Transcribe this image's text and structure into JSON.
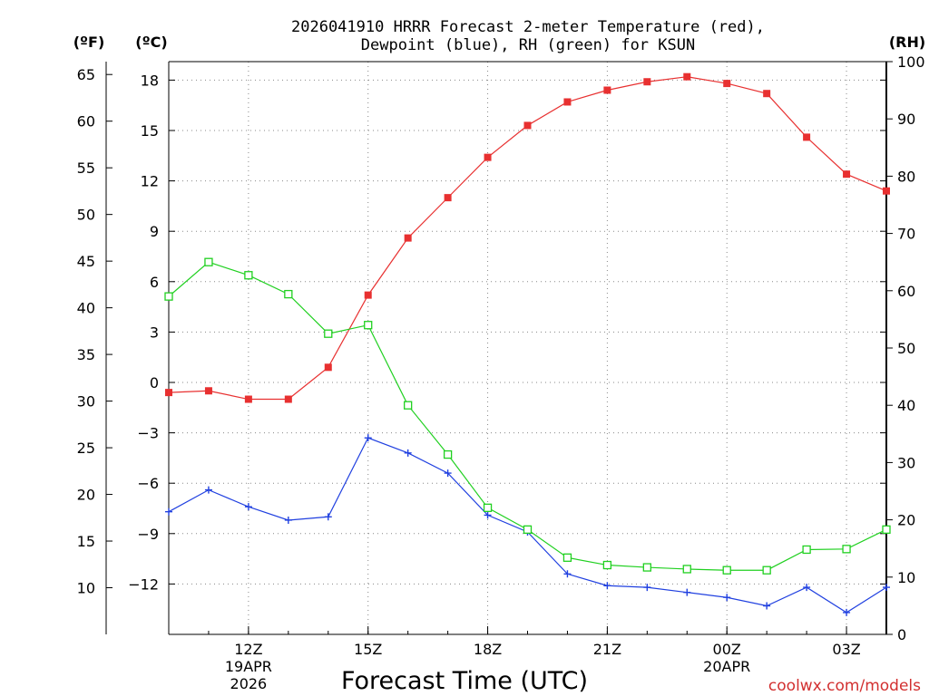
{
  "chart_data": {
    "type": "line",
    "title_line1": "2026041910 HRRR Forecast 2-meter Temperature (red),",
    "title_line2": "Dewpoint (blue), RH (green) for KSUN",
    "xlabel": "Forecast Time (UTC)",
    "credit": "coolwx.com/models",
    "unit_f": "(ºF)",
    "unit_c": "(ºC)",
    "unit_rh": "(RH)",
    "x_hours": [
      10,
      11,
      12,
      13,
      14,
      15,
      16,
      17,
      18,
      19,
      20,
      21,
      22,
      23,
      24,
      25,
      26,
      27,
      28
    ],
    "xlim": [
      10,
      28
    ],
    "x_ticks": [
      {
        "h": 12,
        "label": "12Z",
        "sub1": "19APR",
        "sub2": "2026"
      },
      {
        "h": 15,
        "label": "15Z",
        "sub1": "",
        "sub2": ""
      },
      {
        "h": 18,
        "label": "18Z",
        "sub1": "",
        "sub2": ""
      },
      {
        "h": 21,
        "label": "21Z",
        "sub1": "",
        "sub2": ""
      },
      {
        "h": 24,
        "label": "00Z",
        "sub1": "20APR",
        "sub2": ""
      },
      {
        "h": 27,
        "label": "03Z",
        "sub1": "",
        "sub2": ""
      }
    ],
    "celsius_axis": {
      "ylim": [
        -15,
        19.1
      ],
      "ticks": [
        18,
        15,
        12,
        9,
        6,
        3,
        0,
        -3,
        -6,
        -9,
        -12
      ],
      "labels": [
        "18",
        "15",
        "12",
        "9",
        "6",
        "3",
        "0",
        "−3",
        "−6",
        "−9",
        "−12"
      ]
    },
    "fahrenheit_axis": {
      "ticks": [
        65,
        60,
        55,
        50,
        45,
        40,
        35,
        30,
        25,
        20,
        15,
        10
      ],
      "labels": [
        "65",
        "60",
        "55",
        "50",
        "45",
        "40",
        "35",
        "30",
        "25",
        "20",
        "15",
        "10"
      ]
    },
    "rh_axis": {
      "ylim": [
        0,
        100
      ],
      "ticks": [
        100,
        90,
        80,
        70,
        60,
        50,
        40,
        30,
        20,
        10,
        0
      ],
      "labels": [
        "100",
        "90",
        "80",
        "70",
        "60",
        "50",
        "40",
        "30",
        "20",
        "10",
        "0"
      ]
    },
    "series": [
      {
        "name": "2-meter Temperature",
        "axis": "C",
        "color": "#e83030",
        "marker": "filled-square",
        "values": [
          -0.6,
          -0.5,
          -1.0,
          -1.0,
          0.9,
          5.2,
          8.6,
          11.0,
          13.4,
          15.3,
          16.7,
          17.4,
          17.9,
          18.2,
          17.8,
          17.2,
          14.6,
          12.4,
          11.4
        ]
      },
      {
        "name": "Dewpoint",
        "axis": "C",
        "color": "#2040e0",
        "marker": "plus",
        "values": [
          -7.7,
          -6.4,
          -7.4,
          -8.2,
          -8.0,
          -3.3,
          -4.2,
          -5.4,
          -7.9,
          -8.9,
          -11.4,
          -12.1,
          -12.2,
          -12.5,
          -12.8,
          -13.3,
          -12.2,
          -13.7,
          -12.2
        ]
      },
      {
        "name": "RH",
        "axis": "RH",
        "color": "#20d020",
        "marker": "open-square",
        "values": [
          59.0,
          65.0,
          62.7,
          59.4,
          52.5,
          54.0,
          40.0,
          31.4,
          22.1,
          18.3,
          13.4,
          12.1,
          11.7,
          11.4,
          11.2,
          11.2,
          14.8,
          14.9,
          18.3
        ]
      }
    ]
  }
}
